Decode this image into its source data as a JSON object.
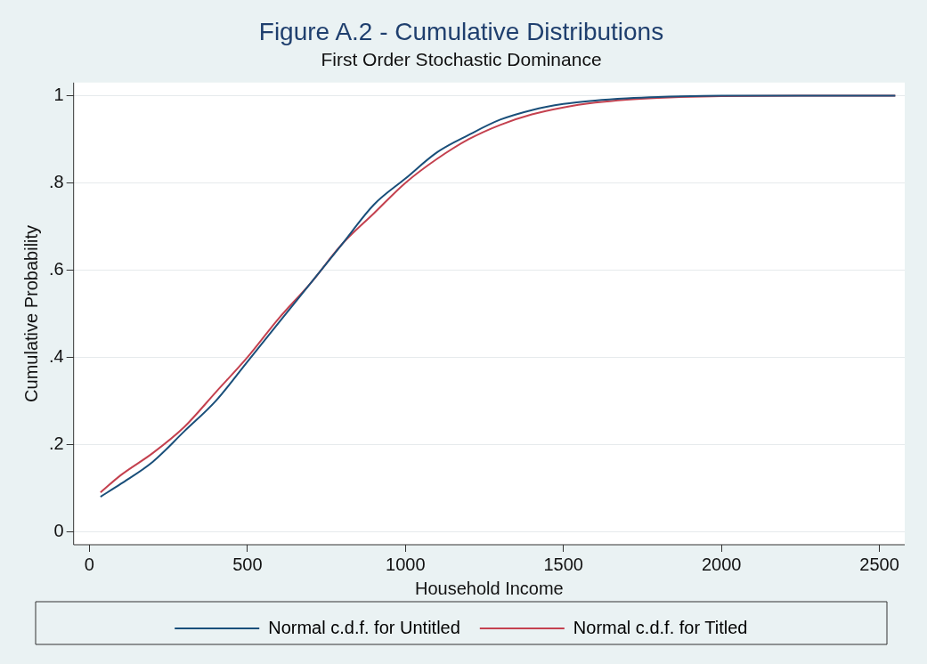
{
  "chart_data": {
    "type": "line",
    "title": "Figure A.2 - Cumulative Distributions",
    "subtitle": "First Order Stochastic Dominance",
    "xlabel": "Household Income",
    "ylabel": "Cumulative Probability",
    "x": [
      35,
      100,
      200,
      300,
      400,
      500,
      600,
      700,
      800,
      900,
      1000,
      1100,
      1200,
      1300,
      1400,
      1500,
      1600,
      1700,
      1800,
      2000,
      2550
    ],
    "series": [
      {
        "name": "Normal c.d.f. for Untitled",
        "color": "#1a4f7a",
        "values": [
          0.08,
          0.11,
          0.16,
          0.23,
          0.3,
          0.39,
          0.48,
          0.57,
          0.66,
          0.75,
          0.81,
          0.87,
          0.91,
          0.945,
          0.967,
          0.981,
          0.989,
          0.994,
          0.997,
          1.0,
          1.0
        ]
      },
      {
        "name": "Normal c.d.f. for Titled",
        "color": "#c4414f",
        "values": [
          0.09,
          0.13,
          0.18,
          0.24,
          0.32,
          0.4,
          0.49,
          0.57,
          0.66,
          0.73,
          0.8,
          0.855,
          0.9,
          0.933,
          0.957,
          0.973,
          0.984,
          0.991,
          0.995,
          0.999,
          1.0
        ]
      }
    ],
    "xlim": [
      -50,
      2580
    ],
    "xticks": [
      0,
      500,
      1000,
      1500,
      2000,
      2500
    ],
    "ylim": [
      -0.03,
      1.03
    ],
    "yticks": [
      {
        "value": 0,
        "label": "0"
      },
      {
        "value": 0.2,
        "label": ".2"
      },
      {
        "value": 0.4,
        "label": ".4"
      },
      {
        "value": 0.6,
        "label": ".6"
      },
      {
        "value": 0.8,
        "label": ".8"
      },
      {
        "value": 1,
        "label": "1"
      }
    ],
    "grid": "y",
    "legend": "bottom",
    "marker": "none",
    "line_style": "solid"
  }
}
